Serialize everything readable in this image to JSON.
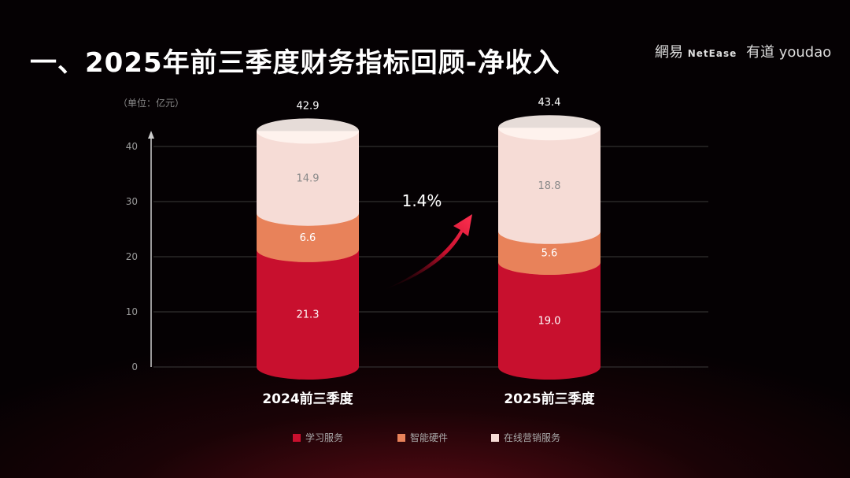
{
  "title": "一、2025年前三季度财务指标回顾-净收入",
  "logos": {
    "netease_cn": "網易",
    "netease_en": "NetEase",
    "youdao_cn": "有道",
    "youdao_en": "youdao"
  },
  "chart_data": {
    "type": "bar",
    "stacked": true,
    "unit_label": "（单位：亿元）",
    "categories": [
      "2024前三季度",
      "2025前三季度"
    ],
    "series": [
      {
        "name": "学习服务",
        "values": [
          21.3,
          19.0
        ],
        "color": "#c8102e"
      },
      {
        "name": "智能硬件",
        "values": [
          6.6,
          5.6
        ],
        "color": "#e8825a"
      },
      {
        "name": "在线营销服务",
        "values": [
          14.9,
          18.8
        ],
        "color": "#f6dcd6"
      }
    ],
    "totals": [
      "42.9",
      "43.4"
    ],
    "growth_label": "1.4%",
    "ylim": [
      0,
      40
    ],
    "yticks": [
      "0",
      "10",
      "20",
      "30",
      "40"
    ],
    "grid": true,
    "legend_position": "bottom"
  }
}
